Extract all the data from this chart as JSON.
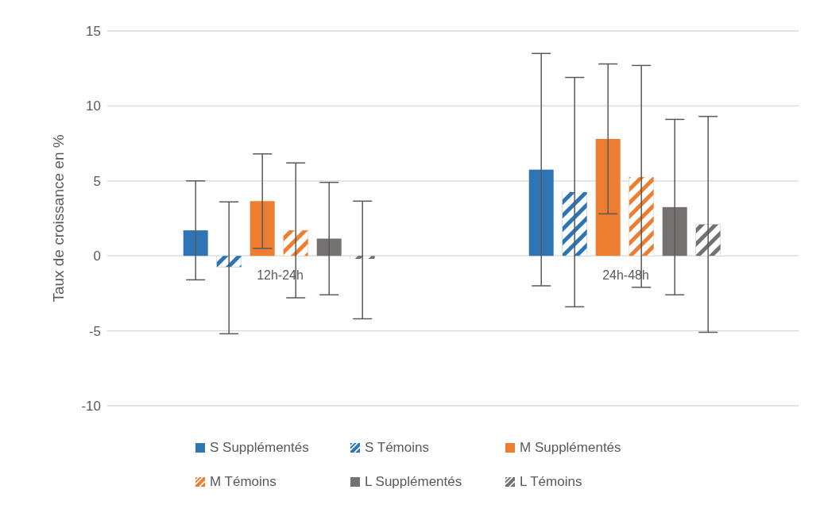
{
  "chart_data": {
    "type": "bar",
    "ylabel": "Taux de croissance en %",
    "categories": [
      "12h-24h",
      "24h-48h"
    ],
    "series": [
      {
        "name": "S Supplémentés",
        "color": "#2e75b6",
        "values": [
          1.7,
          5.75
        ],
        "errors": [
          [
            -1.6,
            5.0
          ],
          [
            -2.0,
            13.5
          ]
        ]
      },
      {
        "name": "S Témoins",
        "color": "#2e75b6",
        "values": [
          -0.75,
          4.25
        ],
        "errors": [
          [
            -5.2,
            3.6
          ],
          [
            -3.4,
            11.9
          ]
        ]
      },
      {
        "name": "M Supplémentés",
        "color": "#ed7d31",
        "values": [
          3.65,
          7.8
        ],
        "errors": [
          [
            0.5,
            6.8
          ],
          [
            2.8,
            12.8
          ]
        ]
      },
      {
        "name": "M Témoins",
        "color": "#ed7d31",
        "values": [
          1.7,
          5.25
        ],
        "errors": [
          [
            -2.8,
            6.2
          ],
          [
            -2.1,
            12.7
          ]
        ]
      },
      {
        "name": "L Supplémentés",
        "color": "#767171",
        "values": [
          1.15,
          3.25
        ],
        "errors": [
          [
            -2.6,
            4.9
          ],
          [
            -2.6,
            9.1
          ]
        ]
      },
      {
        "name": "L Témoins",
        "color": "#767171",
        "values": [
          -0.2,
          2.1
        ],
        "errors": [
          [
            -4.2,
            3.65
          ],
          [
            -5.1,
            9.3
          ]
        ]
      }
    ],
    "ylim": [
      -10,
      15
    ],
    "yticks": [
      -10,
      -5,
      0,
      5,
      10,
      15
    ],
    "grid": "y",
    "legend": "bottom"
  }
}
